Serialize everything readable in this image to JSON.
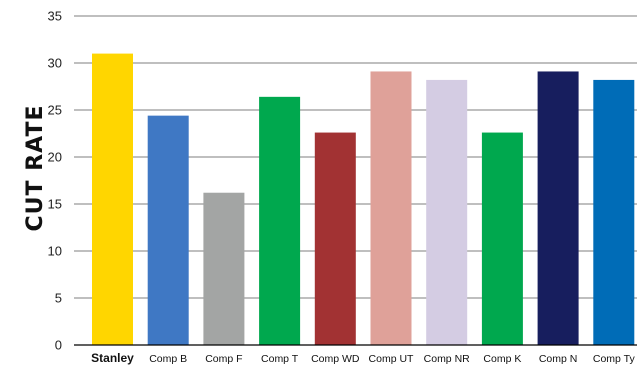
{
  "chart_data": {
    "type": "bar",
    "title": "",
    "xlabel": "",
    "ylabel": "CUT RATE",
    "ylim": [
      0,
      35
    ],
    "yticks": [
      0,
      5,
      10,
      15,
      20,
      25,
      30,
      35
    ],
    "grid": true,
    "legend": "none",
    "categories": [
      "Stanley",
      "Comp B",
      "Comp F",
      "Comp T",
      "Comp WD",
      "Comp UT",
      "Comp NR",
      "Comp K",
      "Comp N",
      "Comp Ty"
    ],
    "values": [
      31,
      24.4,
      16.2,
      26.4,
      22.6,
      29.1,
      28.2,
      22.6,
      29.1,
      28.2
    ],
    "colors": [
      "#FFD600",
      "#3F78C4",
      "#A3A5A4",
      "#00A84E",
      "#A23233",
      "#DFA199",
      "#D4CCE3",
      "#00A84E",
      "#171E5E",
      "#006CB7"
    ],
    "bold_categories": [
      "Stanley"
    ]
  }
}
